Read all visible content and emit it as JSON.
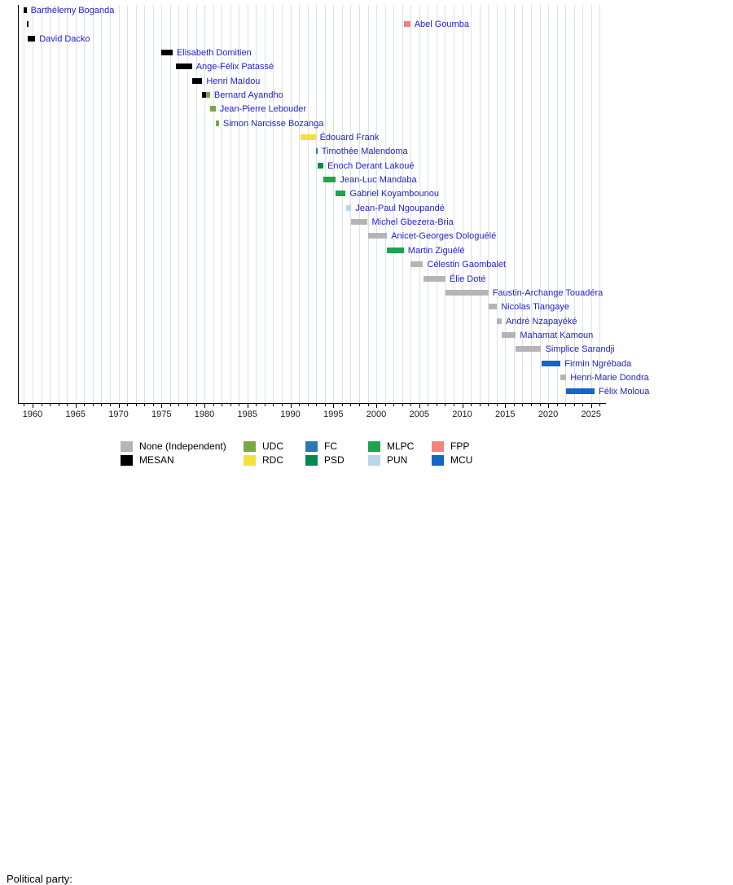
{
  "chart_data": {
    "type": "timeline",
    "description_visible_text_only": "Gantt-style timeline of office holders with political party colors",
    "x_axis": {
      "major_ticks": [
        1960,
        1965,
        1970,
        1975,
        1980,
        1985,
        1990,
        1995,
        2000,
        2005,
        2010,
        2015,
        2020,
        2025
      ],
      "minor_step": 1,
      "range": [
        1958.3,
        2026.5
      ],
      "grid": "vertical yearly light gridlines"
    },
    "parties": {
      "none": "#b5b5b5",
      "mesan": "#000000",
      "udc": "#79a843",
      "rdc": "#f4e13c",
      "fc": "#2a7ab0",
      "psd": "#008a50",
      "mlpc": "#1ca44f",
      "pun": "#b8d8e8",
      "fpp": "#f4837d",
      "mcu": "#1266c8"
    },
    "legend": {
      "title": "Political party:",
      "columns": [
        [
          {
            "party": "none",
            "label": "None (Independent)"
          },
          {
            "party": "mesan",
            "label": "MESAN"
          }
        ],
        [
          {
            "party": "udc",
            "label": "UDC"
          },
          {
            "party": "rdc",
            "label": "RDC"
          }
        ],
        [
          {
            "party": "fc",
            "label": "FC"
          },
          {
            "party": "psd",
            "label": "PSD"
          }
        ],
        [
          {
            "party": "mlpc",
            "label": "MLPC"
          },
          {
            "party": "pun",
            "label": "PUN"
          }
        ],
        [
          {
            "party": "fpp",
            "label": "FPP"
          },
          {
            "party": "mcu",
            "label": "MCU"
          }
        ]
      ]
    },
    "people": [
      {
        "name": "Barthélemy Boganda",
        "terms": [
          {
            "start": 1958.95,
            "end": 1959.3,
            "party": "mesan"
          }
        ]
      },
      {
        "name": "Abel Goumba",
        "terms": [
          {
            "start": 1959.3,
            "end": 1959.45,
            "party": "mesan"
          },
          {
            "start": 2003.2,
            "end": 2003.95,
            "party": "fpp"
          }
        ]
      },
      {
        "name": "David Dacko",
        "terms": [
          {
            "start": 1959.45,
            "end": 1960.3,
            "party": "mesan"
          }
        ]
      },
      {
        "name": "Elisabeth Domitien",
        "terms": [
          {
            "start": 1975.0,
            "end": 1976.3,
            "party": "mesan"
          }
        ]
      },
      {
        "name": "Ange-Félix Patassé",
        "terms": [
          {
            "start": 1976.7,
            "end": 1978.55,
            "party": "mesan"
          }
        ]
      },
      {
        "name": "Henri Maïdou",
        "terms": [
          {
            "start": 1978.55,
            "end": 1979.75,
            "party": "mesan"
          }
        ]
      },
      {
        "name": "Bernard Ayandho",
        "terms": [
          {
            "start": 1979.75,
            "end": 1980.2,
            "party": "mesan"
          },
          {
            "start": 1980.2,
            "end": 1980.65,
            "party": "udc"
          }
        ]
      },
      {
        "name": "Jean-Pierre Lebouder",
        "terms": [
          {
            "start": 1980.65,
            "end": 1981.3,
            "party": "udc"
          }
        ]
      },
      {
        "name": "Simon Narcisse Bozanga",
        "terms": [
          {
            "start": 1981.3,
            "end": 1981.7,
            "party": "udc"
          }
        ]
      },
      {
        "name": "Édouard Frank",
        "terms": [
          {
            "start": 1991.2,
            "end": 1992.95,
            "party": "rdc"
          }
        ]
      },
      {
        "name": "Timothée Malendoma",
        "terms": [
          {
            "start": 1992.95,
            "end": 1993.15,
            "party": "fc"
          }
        ]
      },
      {
        "name": "Enoch Derant Lakoué",
        "terms": [
          {
            "start": 1993.15,
            "end": 1993.85,
            "party": "psd"
          }
        ]
      },
      {
        "name": "Jean-Luc Mandaba",
        "terms": [
          {
            "start": 1993.85,
            "end": 1995.3,
            "party": "mlpc"
          }
        ]
      },
      {
        "name": "Gabriel Koyambounou",
        "terms": [
          {
            "start": 1995.3,
            "end": 1996.45,
            "party": "mlpc"
          }
        ]
      },
      {
        "name": "Jean-Paul Ngoupandé",
        "terms": [
          {
            "start": 1996.45,
            "end": 1997.1,
            "party": "pun"
          }
        ]
      },
      {
        "name": "Michel Gbezera-Bria",
        "terms": [
          {
            "start": 1997.1,
            "end": 1999.0,
            "party": "none"
          }
        ]
      },
      {
        "name": "Anicet-Georges Dologuélé",
        "terms": [
          {
            "start": 1999.0,
            "end": 2001.25,
            "party": "none"
          }
        ]
      },
      {
        "name": "Martin Ziguélé",
        "terms": [
          {
            "start": 2001.25,
            "end": 2003.2,
            "party": "mlpc"
          }
        ]
      },
      {
        "name": "Célestin Gaombalet",
        "terms": [
          {
            "start": 2003.95,
            "end": 2005.45,
            "party": "none"
          }
        ]
      },
      {
        "name": "Élie Doté",
        "terms": [
          {
            "start": 2005.45,
            "end": 2008.05,
            "party": "none"
          }
        ]
      },
      {
        "name": "Faustin-Archange Touadéra",
        "terms": [
          {
            "start": 2008.05,
            "end": 2013.05,
            "party": "none"
          }
        ]
      },
      {
        "name": "Nicolas Tiangaye",
        "terms": [
          {
            "start": 2013.05,
            "end": 2014.05,
            "party": "none"
          }
        ]
      },
      {
        "name": "André Nzapayéké",
        "terms": [
          {
            "start": 2014.05,
            "end": 2014.6,
            "party": "none"
          }
        ]
      },
      {
        "name": "Mahamat Kamoun",
        "terms": [
          {
            "start": 2014.6,
            "end": 2016.25,
            "party": "none"
          }
        ]
      },
      {
        "name": "Simplice Sarandji",
        "terms": [
          {
            "start": 2016.25,
            "end": 2019.2,
            "party": "none"
          }
        ]
      },
      {
        "name": "Firmin Ngrébada",
        "terms": [
          {
            "start": 2019.2,
            "end": 2021.45,
            "party": "mcu"
          }
        ]
      },
      {
        "name": "Henri-Marie Dondra",
        "terms": [
          {
            "start": 2021.45,
            "end": 2022.1,
            "party": "none"
          }
        ]
      },
      {
        "name": "Félix Moloua",
        "terms": [
          {
            "start": 2022.1,
            "end": 2025.4,
            "party": "mcu"
          }
        ]
      }
    ]
  }
}
